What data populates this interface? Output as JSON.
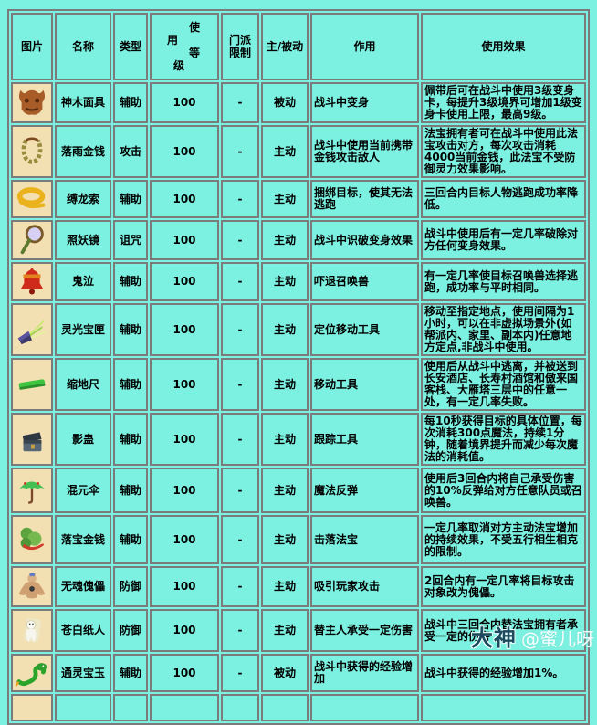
{
  "page": {
    "background_color": "#7df1e1",
    "icon_cell_color": "#f2dfb2",
    "border_color": "#7b7b7b",
    "text_color": "#000000"
  },
  "table": {
    "columns": [
      {
        "key": "icon",
        "label": "图片"
      },
      {
        "key": "name",
        "label": "名称"
      },
      {
        "key": "type",
        "label": "类型"
      },
      {
        "key": "level",
        "label": "使用等级",
        "lines": [
          "使",
          "用",
          "等",
          "级"
        ]
      },
      {
        "key": "sect",
        "label": "门派限制",
        "lines": [
          "门派",
          "限制"
        ]
      },
      {
        "key": "mode",
        "label": "主/被动"
      },
      {
        "key": "function",
        "label": "作用"
      },
      {
        "key": "effect",
        "label": "使用效果"
      }
    ],
    "rows": [
      {
        "icon": "wood-mask-icon",
        "name": "神木面具",
        "type": "辅助",
        "level": "100",
        "sect": "-",
        "mode": "被动",
        "function": "战斗中变身",
        "effect": "佩带后可在战斗中使用3级变身卡，每提升3级境界可增加1级变身卡使用上限，最高9级。"
      },
      {
        "icon": "coin-necklace-icon",
        "name": "落雨金钱",
        "type": "攻击",
        "level": "100",
        "sect": "-",
        "mode": "主动",
        "function": "战斗中使用当前携带金钱攻击敌人",
        "effect": "法宝拥有者可在战斗中使用此法宝攻击对方，每次攻击消耗4000当前金钱，此法宝不受防御灵力效果影响。"
      },
      {
        "icon": "rope-icon",
        "name": "缚龙索",
        "type": "辅助",
        "level": "100",
        "sect": "-",
        "mode": "主动",
        "function": "捆绑目标，使其无法逃跑",
        "effect": "三回合内目标人物逃跑成功率降低。"
      },
      {
        "icon": "mirror-icon",
        "name": "照妖镜",
        "type": "诅咒",
        "level": "100",
        "sect": "-",
        "mode": "主动",
        "function": "战斗中识破变身效果",
        "effect": "战斗中使用后有一定几率破除对方任何变身效果。"
      },
      {
        "icon": "bell-icon",
        "name": "鬼泣",
        "type": "辅助",
        "level": "100",
        "sect": "-",
        "mode": "主动",
        "function": "吓退召唤兽",
        "effect": "有一定几率使目标召唤兽选择逃跑，成功率与平时相同。"
      },
      {
        "icon": "light-box-icon",
        "name": "灵光宝匣",
        "type": "辅助",
        "level": "100",
        "sect": "-",
        "mode": "主动",
        "function": "定位移动工具",
        "effect": "移动至指定地点，使用间隔为1小时，可以在非虚拟场景外(如帮派内、家里、副本内)任意地方定点,非战斗中使用。"
      },
      {
        "icon": "jade-ruler-icon",
        "name": "缩地尺",
        "type": "辅助",
        "level": "100",
        "sect": "-",
        "mode": "主动",
        "function": "移动工具",
        "effect": "使用后从战斗中逃离，并被送到长安酒店、长寿村酒馆和傲来国客栈、大雁塔三层中的任意一处，有一定几率失败。"
      },
      {
        "icon": "chest-icon",
        "name": "影蛊",
        "type": "辅助",
        "level": "100",
        "sect": "-",
        "mode": "主动",
        "function": "跟踪工具",
        "effect": "每10秒获得目标的具体位置，每次消耗300点魔法，持续1分钟，随着境界提升而减少每次魔法的消耗值。"
      },
      {
        "icon": "umbrella-icon",
        "name": "混元伞",
        "type": "辅助",
        "level": "100",
        "sect": "-",
        "mode": "主动",
        "function": "魔法反弹",
        "effect": "使用后3回合内将自己承受伤害的10%反弹给对方任意队员或召唤兽。"
      },
      {
        "icon": "gourd-coins-icon",
        "name": "落宝金钱",
        "type": "辅助",
        "level": "100",
        "sect": "-",
        "mode": "主动",
        "function": "击落法宝",
        "effect": "一定几率取消对方主动法宝增加的持续效果，不受五行相生相克的限制。"
      },
      {
        "icon": "puppet-icon",
        "name": "无魂傀儡",
        "type": "防御",
        "level": "100",
        "sect": "-",
        "mode": "主动",
        "function": "吸引玩家攻击",
        "effect": "2回合内有一定几率将目标攻击对象改为傀儡。"
      },
      {
        "icon": "paper-doll-icon",
        "name": "苍白纸人",
        "type": "防御",
        "level": "100",
        "sect": "-",
        "mode": "主动",
        "function": "替主人承受一定伤害",
        "effect": "战斗中三回合内替法宝拥有者承受一定的伤害"
      },
      {
        "icon": "jade-snake-icon",
        "name": "通灵宝玉",
        "type": "辅助",
        "level": "100",
        "sect": "-",
        "mode": "被动",
        "function": "战斗中获得的经验增加",
        "effect": "战斗中获得的经验增加1%。"
      }
    ]
  },
  "watermark": {
    "brand": "大神",
    "handle": "@蜜儿呀"
  }
}
